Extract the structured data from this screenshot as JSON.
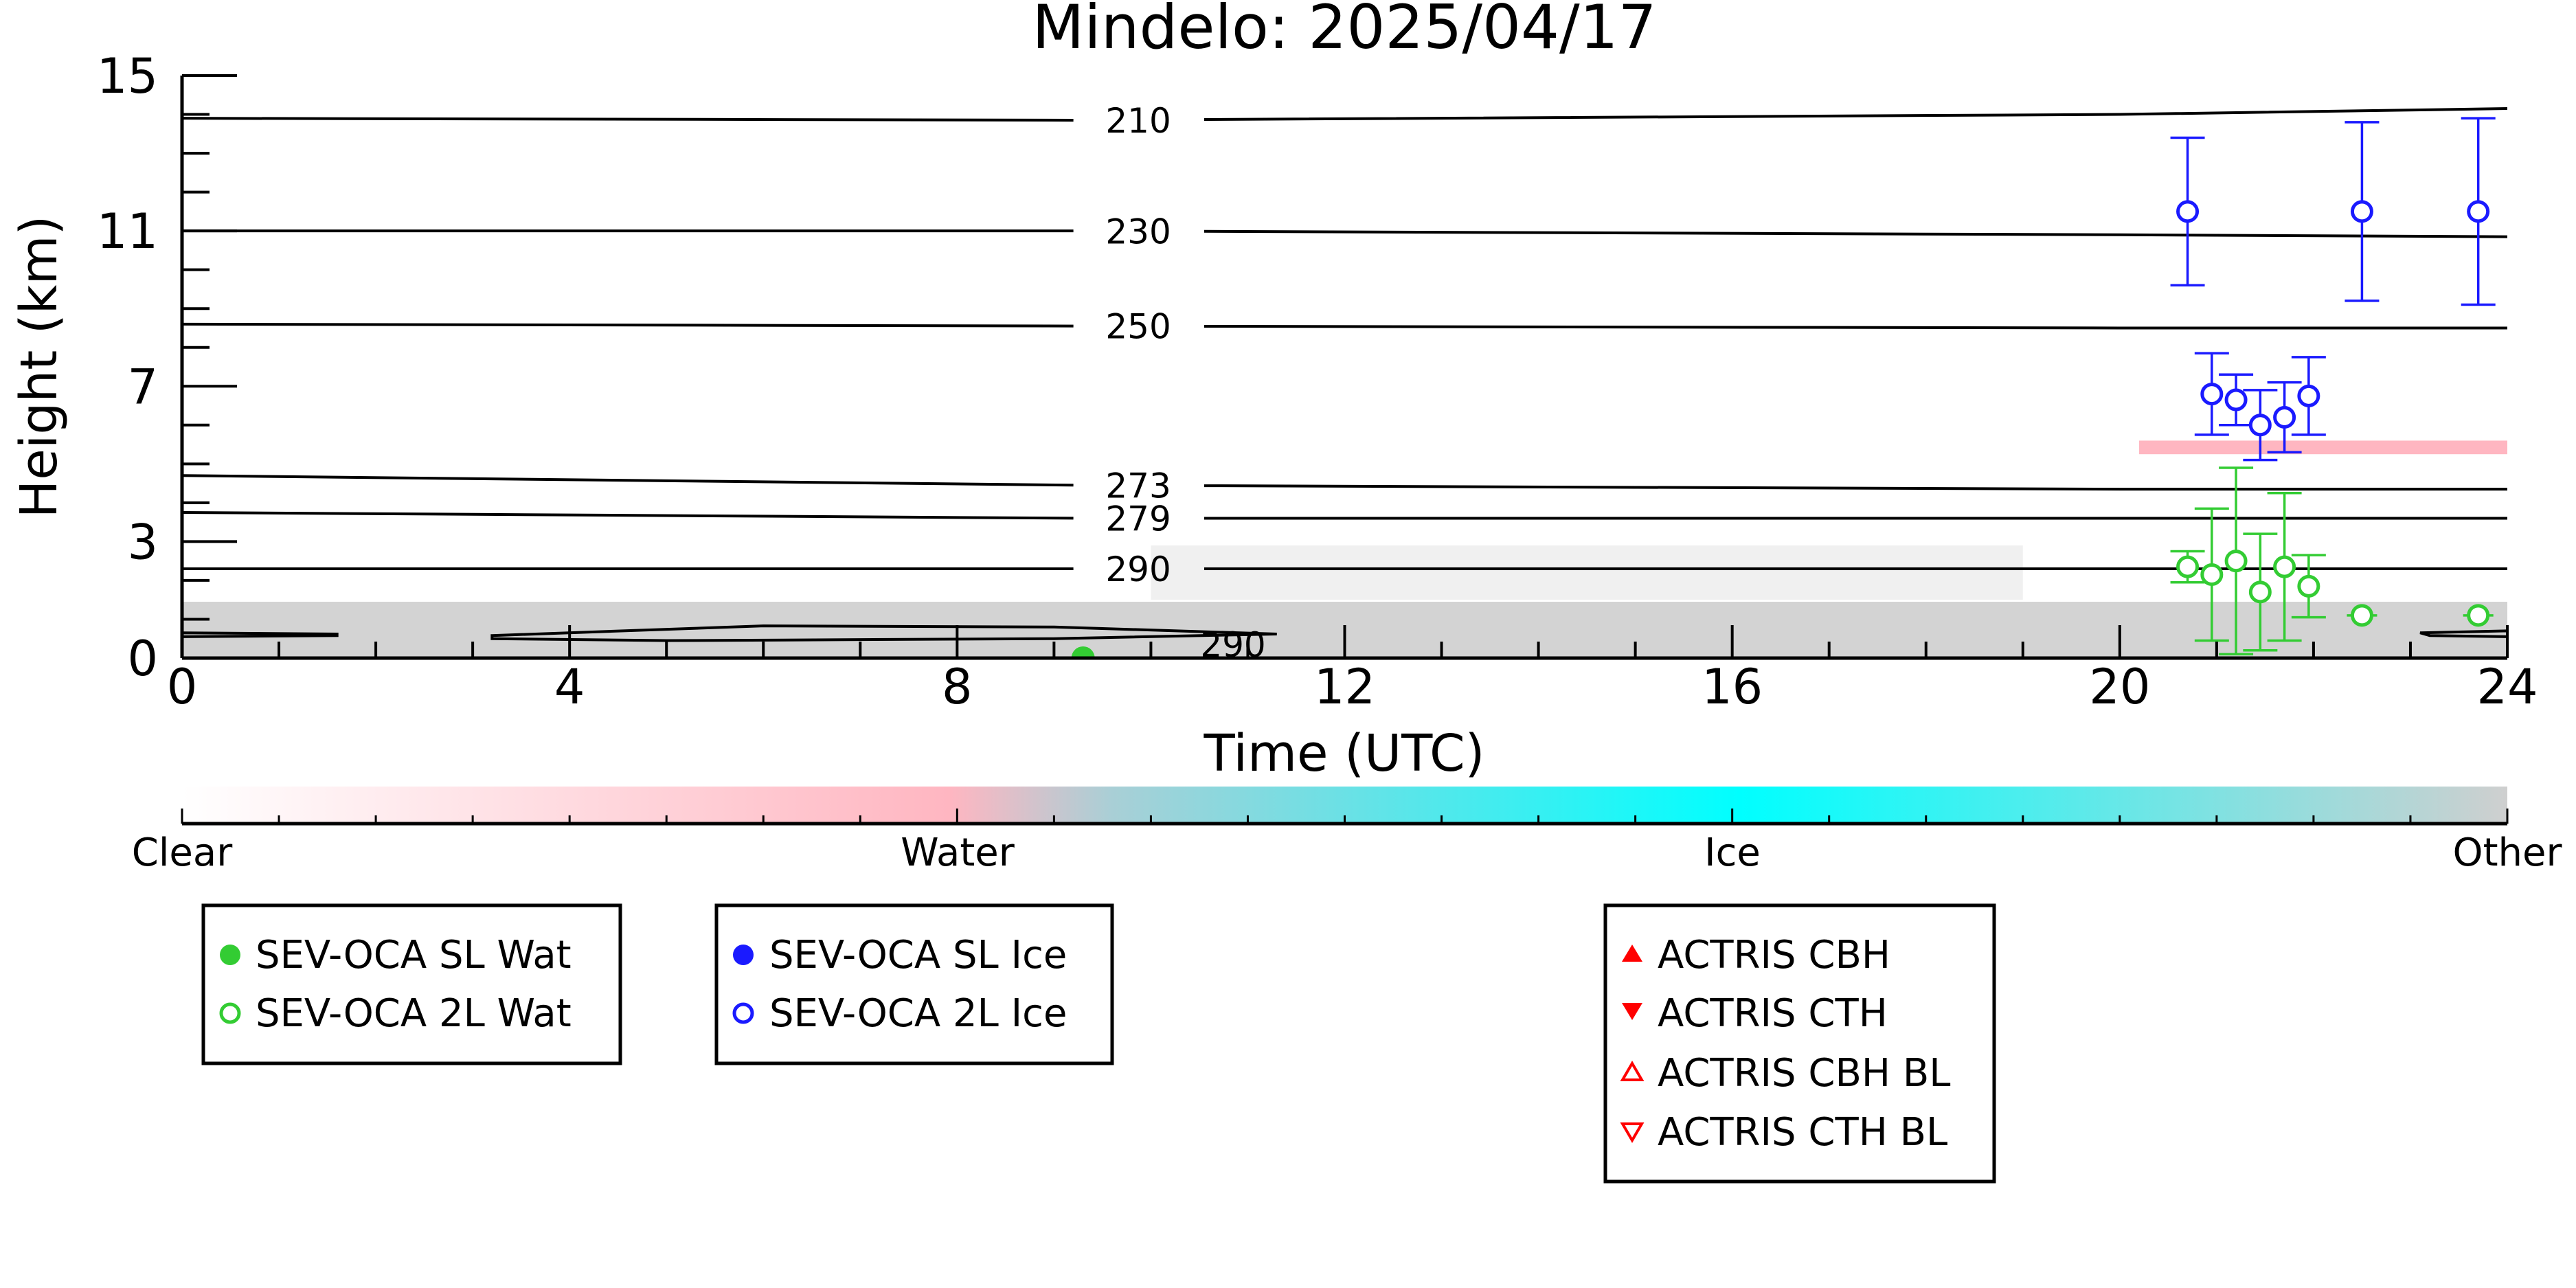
{
  "chart_data": {
    "type": "scatter",
    "title": "Mindelo: 2025/04/17",
    "xlabel": "Time (UTC)",
    "ylabel": "Height (km)",
    "xlim": [
      0,
      24
    ],
    "ylim": [
      0,
      15
    ],
    "x_ticks": [
      0,
      4,
      8,
      12,
      16,
      20,
      24
    ],
    "y_ticks": [
      0,
      3,
      7,
      11,
      15
    ],
    "x_tick_labels": [
      "0",
      "4",
      "8",
      "12",
      "16",
      "20",
      "24"
    ],
    "y_tick_labels": [
      "0",
      "3",
      "7",
      "11",
      "15"
    ],
    "isotherms": [
      {
        "label": "210",
        "label_x": 9.6,
        "points": [
          [
            0,
            13.9
          ],
          [
            9.3,
            13.85
          ],
          [
            20,
            14.0
          ],
          [
            24,
            14.15
          ]
        ]
      },
      {
        "label": "230",
        "label_x": 9.6,
        "points": [
          [
            0,
            11.0
          ],
          [
            9.3,
            11.0
          ],
          [
            20,
            10.9
          ],
          [
            24,
            10.85
          ]
        ]
      },
      {
        "label": "250",
        "label_x": 9.6,
        "points": [
          [
            0,
            8.6
          ],
          [
            9.3,
            8.55
          ],
          [
            20,
            8.5
          ],
          [
            24,
            8.5
          ]
        ]
      },
      {
        "label": "273",
        "label_x": 9.6,
        "points": [
          [
            0,
            4.7
          ],
          [
            9.3,
            4.45
          ],
          [
            20,
            4.35
          ],
          [
            24,
            4.35
          ]
        ]
      },
      {
        "label": "279",
        "label_x": 9.6,
        "points": [
          [
            0,
            3.75
          ],
          [
            9.3,
            3.6
          ],
          [
            20,
            3.6
          ],
          [
            24,
            3.6
          ]
        ]
      },
      {
        "label": "290",
        "label_x": 9.6,
        "points": [
          [
            0,
            2.3
          ],
          [
            9.3,
            2.3
          ],
          [
            20,
            2.3
          ],
          [
            24,
            2.3
          ]
        ]
      }
    ],
    "isotherm_290_low": {
      "label": "290",
      "label_x": 10.6,
      "segments": [
        [
          [
            0,
            0.65
          ],
          [
            1.6,
            0.62
          ],
          [
            1.6,
            0.58
          ],
          [
            0,
            0.55
          ]
        ],
        [
          [
            3.2,
            0.58
          ],
          [
            6,
            0.83
          ],
          [
            9,
            0.8
          ],
          [
            11.3,
            0.62
          ],
          [
            9,
            0.5
          ],
          [
            5,
            0.45
          ],
          [
            3.2,
            0.5
          ]
        ],
        [
          [
            23.1,
            0.65
          ],
          [
            24,
            0.7
          ],
          [
            24,
            0.55
          ],
          [
            23.2,
            0.58
          ]
        ]
      ]
    },
    "background_regions": [
      {
        "class": "Other",
        "x0": 0,
        "x1": 24,
        "y0": 0,
        "y1": 1.45
      },
      {
        "class": "Other",
        "x0": 10,
        "x1": 19,
        "y0": 1.5,
        "y1": 2.9
      },
      {
        "class": "Water",
        "x0": 20.2,
        "x1": 24,
        "y0": 5.25,
        "y1": 5.6
      }
    ],
    "series": [
      {
        "name": "SEV-OCA SL Wat",
        "color": "#33cc33",
        "marker": "filled-circle",
        "points": [
          {
            "x": 9.3,
            "y": 0.0
          }
        ]
      },
      {
        "name": "SEV-OCA 2L Wat",
        "color": "#33cc33",
        "marker": "open-circle",
        "points": [
          {
            "x": 20.7,
            "y": 2.35,
            "yerr": 0.4
          },
          {
            "x": 20.95,
            "y": 2.15,
            "yerr": 1.7
          },
          {
            "x": 21.2,
            "y": 2.5,
            "yerr": 2.4
          },
          {
            "x": 21.45,
            "y": 1.7,
            "yerr": 1.5
          },
          {
            "x": 21.7,
            "y": 2.35,
            "yerr": 1.9
          },
          {
            "x": 21.95,
            "y": 1.85,
            "yerr": 0.8
          },
          {
            "x": 22.5,
            "y": 1.1,
            "yerr": 0.0
          },
          {
            "x": 23.7,
            "y": 1.1,
            "yerr": 0.0
          }
        ]
      },
      {
        "name": "SEV-OCA SL Ice",
        "color": "#1a1aff",
        "marker": "filled-circle",
        "points": []
      },
      {
        "name": "SEV-OCA 2L Ice",
        "color": "#1a1aff",
        "marker": "open-circle",
        "points": [
          {
            "x": 20.7,
            "y": 11.5,
            "yerr": 1.9
          },
          {
            "x": 22.5,
            "y": 11.5,
            "yerr": 2.3
          },
          {
            "x": 23.7,
            "y": 11.5,
            "yerr": 2.4
          },
          {
            "x": 20.95,
            "y": 6.8,
            "yerr": 1.05
          },
          {
            "x": 21.2,
            "y": 6.65,
            "yerr": 0.65
          },
          {
            "x": 21.45,
            "y": 6.0,
            "yerr": 0.9
          },
          {
            "x": 21.7,
            "y": 6.2,
            "yerr": 0.9
          },
          {
            "x": 21.95,
            "y": 6.75,
            "yerr": 1.0
          }
        ]
      },
      {
        "name": "ACTRIS CBH",
        "color": "#ff0000",
        "marker": "filled-triangle-up",
        "points": []
      },
      {
        "name": "ACTRIS CTH",
        "color": "#ff0000",
        "marker": "filled-triangle-down",
        "points": []
      },
      {
        "name": "ACTRIS CBH BL",
        "color": "#ff0000",
        "marker": "open-triangle-up",
        "points": []
      },
      {
        "name": "ACTRIS CTH BL",
        "color": "#ff0000",
        "marker": "open-triangle-down",
        "points": []
      }
    ],
    "colorbar": {
      "labels": [
        "Clear",
        "Water",
        "Ice",
        "Other"
      ],
      "stops": [
        {
          "offset": 0.0,
          "color": "#ffffff"
        },
        {
          "offset": 0.33,
          "color": "#ffb6c1"
        },
        {
          "offset": 0.4,
          "color": "#a9cfd6"
        },
        {
          "offset": 0.67,
          "color": "#00ffff"
        },
        {
          "offset": 1.0,
          "color": "#cfcfcf"
        }
      ]
    },
    "legends": [
      {
        "entries": [
          "SEV-OCA SL Wat",
          "SEV-OCA 2L Wat"
        ]
      },
      {
        "entries": [
          "SEV-OCA SL Ice",
          "SEV-OCA 2L Ice"
        ]
      },
      {
        "entries": [
          "ACTRIS CBH",
          "ACTRIS CTH",
          "ACTRIS CBH BL",
          "ACTRIS CTH BL"
        ]
      }
    ],
    "grid": false,
    "colors": {
      "other": "#d3d3d3",
      "water": "#ffb6c1",
      "wat_marker": "#33cc33",
      "ice_marker": "#1a1aff",
      "actris": "#ff0000"
    }
  }
}
